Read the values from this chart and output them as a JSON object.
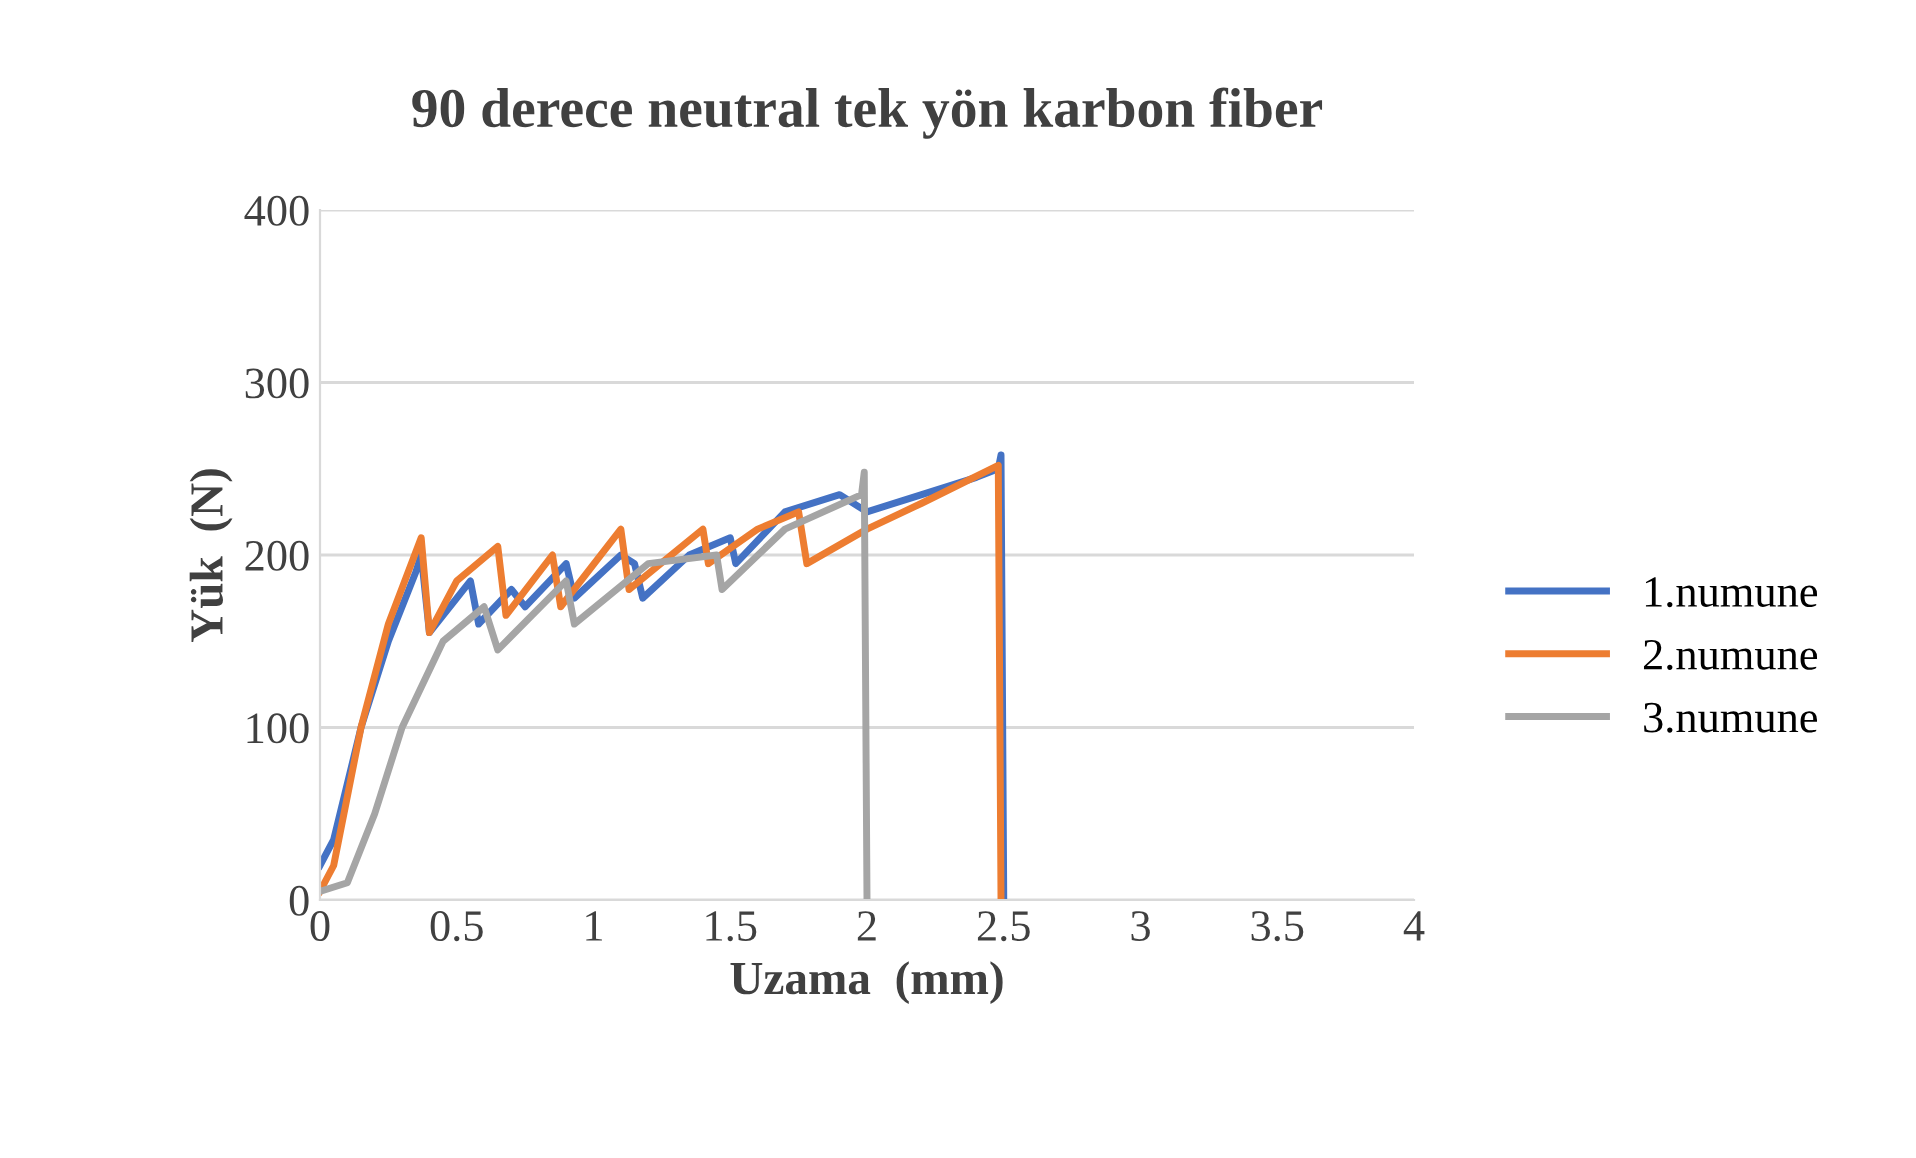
{
  "chart_data": {
    "type": "line",
    "title": "90 derece neutral tek yön karbon fiber",
    "xlabel": "Uzama  (mm)",
    "ylabel": "Yük  (N)",
    "xlim": [
      0,
      4
    ],
    "xticks": [
      0,
      0.5,
      1,
      1.5,
      2,
      2.5,
      3,
      3.5,
      4
    ],
    "ylim": [
      0,
      400
    ],
    "yticks": [
      0,
      100,
      200,
      300,
      400
    ],
    "grid": "y",
    "legend": "right",
    "marker": "none",
    "line_style": "solid",
    "series": [
      {
        "name": "1.numune",
        "color": "#4472c4",
        "x": [
          0,
          0.05,
          0.15,
          0.25,
          0.35,
          0.37,
          0.4,
          0.5,
          0.55,
          0.58,
          0.7,
          0.75,
          0.9,
          0.93,
          1.1,
          1.15,
          1.18,
          1.35,
          1.5,
          1.52,
          1.7,
          1.9,
          2.0,
          2.2,
          2.4,
          2.48,
          2.49,
          2.5
        ],
        "values": [
          20,
          35,
          100,
          150,
          190,
          200,
          155,
          175,
          185,
          160,
          180,
          170,
          195,
          175,
          200,
          195,
          175,
          200,
          210,
          195,
          225,
          235,
          225,
          235,
          245,
          250,
          258,
          0
        ]
      },
      {
        "name": "2.numune",
        "color": "#ed7d31",
        "x": [
          0,
          0.05,
          0.15,
          0.25,
          0.37,
          0.4,
          0.5,
          0.65,
          0.68,
          0.85,
          0.88,
          1.1,
          1.13,
          1.4,
          1.42,
          1.6,
          1.75,
          1.78,
          2.0,
          2.2,
          2.48,
          2.49
        ],
        "values": [
          5,
          20,
          100,
          160,
          210,
          155,
          185,
          205,
          165,
          200,
          170,
          215,
          180,
          215,
          195,
          215,
          225,
          195,
          215,
          230,
          252,
          0
        ]
      },
      {
        "name": "3.numune",
        "color": "#a5a5a5",
        "x": [
          0,
          0.1,
          0.2,
          0.3,
          0.45,
          0.6,
          0.65,
          0.9,
          0.93,
          1.2,
          1.45,
          1.47,
          1.7,
          1.98,
          1.99,
          2.0
        ],
        "values": [
          5,
          10,
          50,
          100,
          150,
          170,
          145,
          185,
          160,
          195,
          200,
          180,
          215,
          235,
          248,
          0
        ]
      }
    ]
  }
}
